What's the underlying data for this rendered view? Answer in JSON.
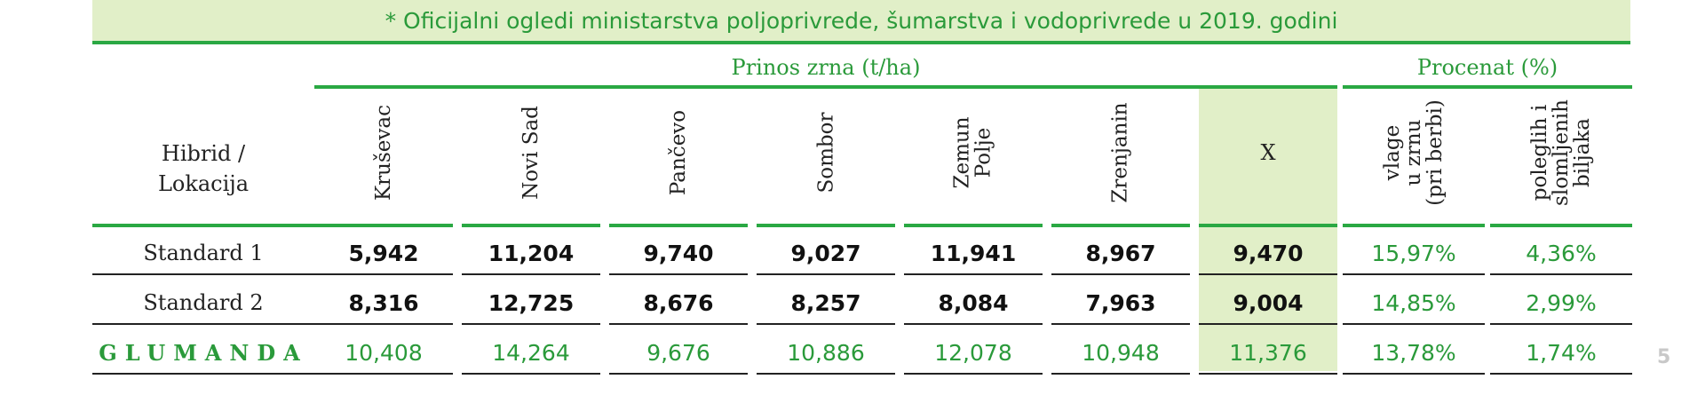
{
  "banner": "* Oficijalni ogledi ministarstva poljoprivrede, šumarstva i vodoprivrede u 2019. godini",
  "group_headers": {
    "yield": "Prinos zrna (t/ha)",
    "percent": "Procenat (%)"
  },
  "row_header": "Hibrid /\nLokacija",
  "columns": [
    "Kruševac",
    "Novi Sad",
    "Pančevo",
    "Sombor",
    "Zemun\nPolje",
    "Zrenjanin",
    "X",
    "vlage\nu zrnu\n(pri berbi)",
    "poleglih i\nslomljenih\nbiljaka"
  ],
  "rows": [
    {
      "name": "Standard 1",
      "values": [
        "5,942",
        "11,204",
        "9,740",
        "9,027",
        "11,941",
        "8,967",
        "9,470",
        "15,97%",
        "4,36%"
      ]
    },
    {
      "name": "Standard 2",
      "values": [
        "8,316",
        "12,725",
        "8,676",
        "8,257",
        "8,084",
        "7,963",
        "9,004",
        "14,85%",
        "2,99%"
      ]
    },
    {
      "name": "GLUMANDA",
      "values": [
        "10,408",
        "14,264",
        "9,676",
        "10,886",
        "12,078",
        "10,948",
        "11,376",
        "13,78%",
        "1,74%"
      ]
    }
  ],
  "page_number": "5",
  "colors": {
    "green": "#2a9a3a",
    "light_green": "#e1efc8",
    "rule_green": "#2aa843"
  }
}
